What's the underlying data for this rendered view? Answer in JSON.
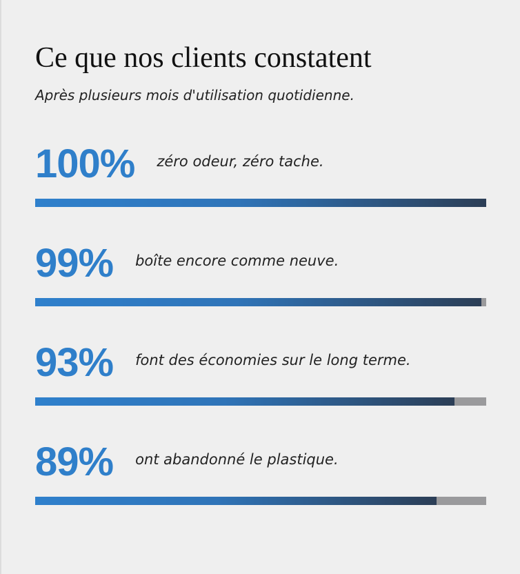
{
  "header": {
    "title": "Ce que nos clients constatent",
    "subtitle": "Après plusieurs mois d'utilisation quotidienne."
  },
  "xlim": [
    0,
    100
  ],
  "stats": [
    {
      "label": "100%",
      "value": 100,
      "text": "zéro odeur, zéro tache."
    },
    {
      "label": "99%",
      "value": 99,
      "text": "boîte encore comme neuve."
    },
    {
      "label": "93%",
      "value": 93,
      "text": "font des économies sur le long terme."
    },
    {
      "label": "89%",
      "value": 89,
      "text": "ont abandonné le plastique."
    }
  ]
}
